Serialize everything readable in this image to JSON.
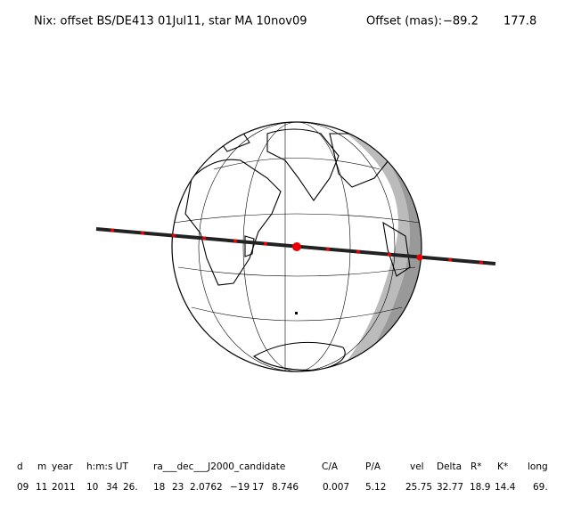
{
  "title": "Nix: offset BS/DE413 01Jul11, star MA 10nov09",
  "offset_label": "Offset (mas):",
  "offset_values": [
    "−89.2",
    "177.8"
  ],
  "table": {
    "headers": [
      "d",
      "m",
      "year",
      "h:m:s UT",
      "ra___dec___J2000_candidate",
      "C/A",
      "P/A",
      "vel",
      "Delta",
      "R*",
      "K*",
      "long"
    ],
    "row": [
      "09",
      "11",
      "2011",
      "10",
      "34",
      "26.",
      "18",
      "23",
      "2.0762",
      "−19",
      "17",
      "8.746",
      "0.007",
      "5.12",
      "25.75",
      "32.77",
      "18.9",
      "14.4",
      "69."
    ]
  }
}
